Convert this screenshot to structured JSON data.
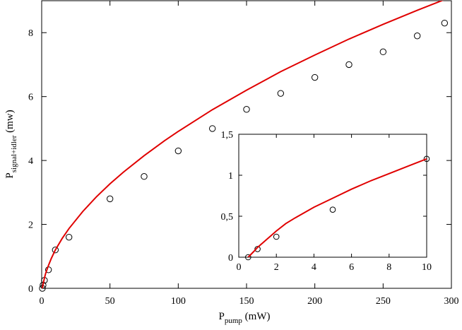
{
  "chart_data": [
    {
      "id": "main",
      "type": "scatter",
      "xlabel": {
        "main": "P",
        "sub": "pump",
        "unit": " (mW)"
      },
      "ylabel": {
        "main": "P",
        "sub": "signal+idler",
        "unit": " (mw)"
      },
      "xlim": [
        0,
        300
      ],
      "ylim": [
        0,
        9
      ],
      "xticks": [
        0,
        50,
        100,
        150,
        200,
        250,
        300
      ],
      "xtick_labels": [
        "0",
        "50",
        "100",
        "150",
        "200",
        "250",
        "300"
      ],
      "yticks": [
        0,
        2,
        4,
        6,
        8
      ],
      "ytick_labels": [
        "0",
        "2",
        "4",
        "6",
        "8"
      ],
      "grid": false,
      "series": [
        {
          "kind": "points",
          "marker": "open-circle",
          "color": "#000000",
          "x": [
            0.5,
            1,
            2,
            5,
            10,
            20,
            50,
            75,
            100,
            125,
            150,
            175,
            200,
            225,
            250,
            275,
            295
          ],
          "y": [
            0.0,
            0.1,
            0.25,
            0.58,
            1.2,
            1.6,
            2.8,
            3.5,
            4.3,
            5.0,
            5.6,
            6.1,
            6.6,
            7.0,
            7.4,
            7.9,
            8.3
          ]
        },
        {
          "kind": "fit-line",
          "color": "#e00000",
          "x": [
            0.5,
            1,
            2,
            3,
            5,
            7,
            10,
            15,
            20,
            30,
            40,
            50,
            60,
            75,
            90,
            100,
            125,
            150,
            175,
            200,
            225,
            250,
            275,
            300
          ],
          "y": [
            0.0,
            0.12,
            0.32,
            0.48,
            0.72,
            0.93,
            1.2,
            1.56,
            1.87,
            2.4,
            2.86,
            3.27,
            3.64,
            4.15,
            4.62,
            4.91,
            5.59,
            6.2,
            6.78,
            7.3,
            7.8,
            8.26,
            8.7,
            9.12
          ]
        }
      ]
    },
    {
      "id": "inset",
      "type": "scatter",
      "xlabel": null,
      "ylabel": null,
      "xlim": [
        0,
        10
      ],
      "ylim": [
        0,
        1.5
      ],
      "xticks": [
        0,
        2,
        4,
        6,
        8,
        10
      ],
      "xtick_labels": [
        "0",
        "2",
        "4",
        "6",
        "8",
        "10"
      ],
      "yticks": [
        0,
        0.5,
        1,
        1.5
      ],
      "ytick_labels": [
        "0",
        "0,5",
        "1",
        "1,5"
      ],
      "grid": false,
      "series": [
        {
          "kind": "points",
          "marker": "open-circle",
          "color": "#000000",
          "x": [
            0.5,
            1,
            2,
            5,
            10
          ],
          "y": [
            0.0,
            0.1,
            0.25,
            0.58,
            1.2
          ]
        },
        {
          "kind": "fit-line",
          "color": "#e00000",
          "x": [
            0.5,
            0.8,
            1,
            1.5,
            2,
            2.5,
            3,
            4,
            5,
            6,
            7,
            8,
            9,
            10
          ],
          "y": [
            0.0,
            0.07,
            0.12,
            0.22,
            0.32,
            0.41,
            0.48,
            0.61,
            0.72,
            0.83,
            0.93,
            1.02,
            1.11,
            1.2
          ]
        }
      ]
    }
  ]
}
